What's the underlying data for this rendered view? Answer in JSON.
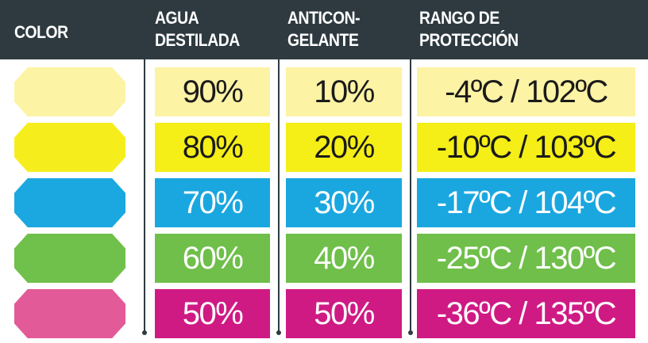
{
  "table": {
    "header": [
      [
        "COLOR"
      ],
      [
        "AGUA",
        "DESTILADA"
      ],
      [
        "ANTICON-",
        "GELANTE"
      ],
      [
        "RANGO DE",
        "PROTECCIÓN"
      ]
    ],
    "rows": [
      {
        "swatch": "#fcf4a4",
        "color": "#fdf3a5",
        "text_color": "#1a1a1a",
        "cells": [
          "90%",
          "10%",
          "-4ºC / 102ºC"
        ]
      },
      {
        "swatch": "#f6ee1c",
        "color": "#f5ee17",
        "text_color": "#1a1a1a",
        "cells": [
          "80%",
          "20%",
          "-10ºC / 103ºC"
        ]
      },
      {
        "swatch": "#1ba8e0",
        "color": "#1aa7e0",
        "text_color": "#ffffff",
        "cells": [
          "70%",
          "30%",
          "-17ºC / 104ºC"
        ]
      },
      {
        "swatch": "#70c04c",
        "color": "#6fbf4a",
        "text_color": "#ffffff",
        "cells": [
          "60%",
          "40%",
          "-25ºC / 130ºC"
        ]
      },
      {
        "swatch": "#e25a98",
        "color": "#cf1a84",
        "text_color": "#ffffff",
        "cells": [
          "50%",
          "50%",
          "-36ºC / 135ºC"
        ]
      }
    ]
  }
}
